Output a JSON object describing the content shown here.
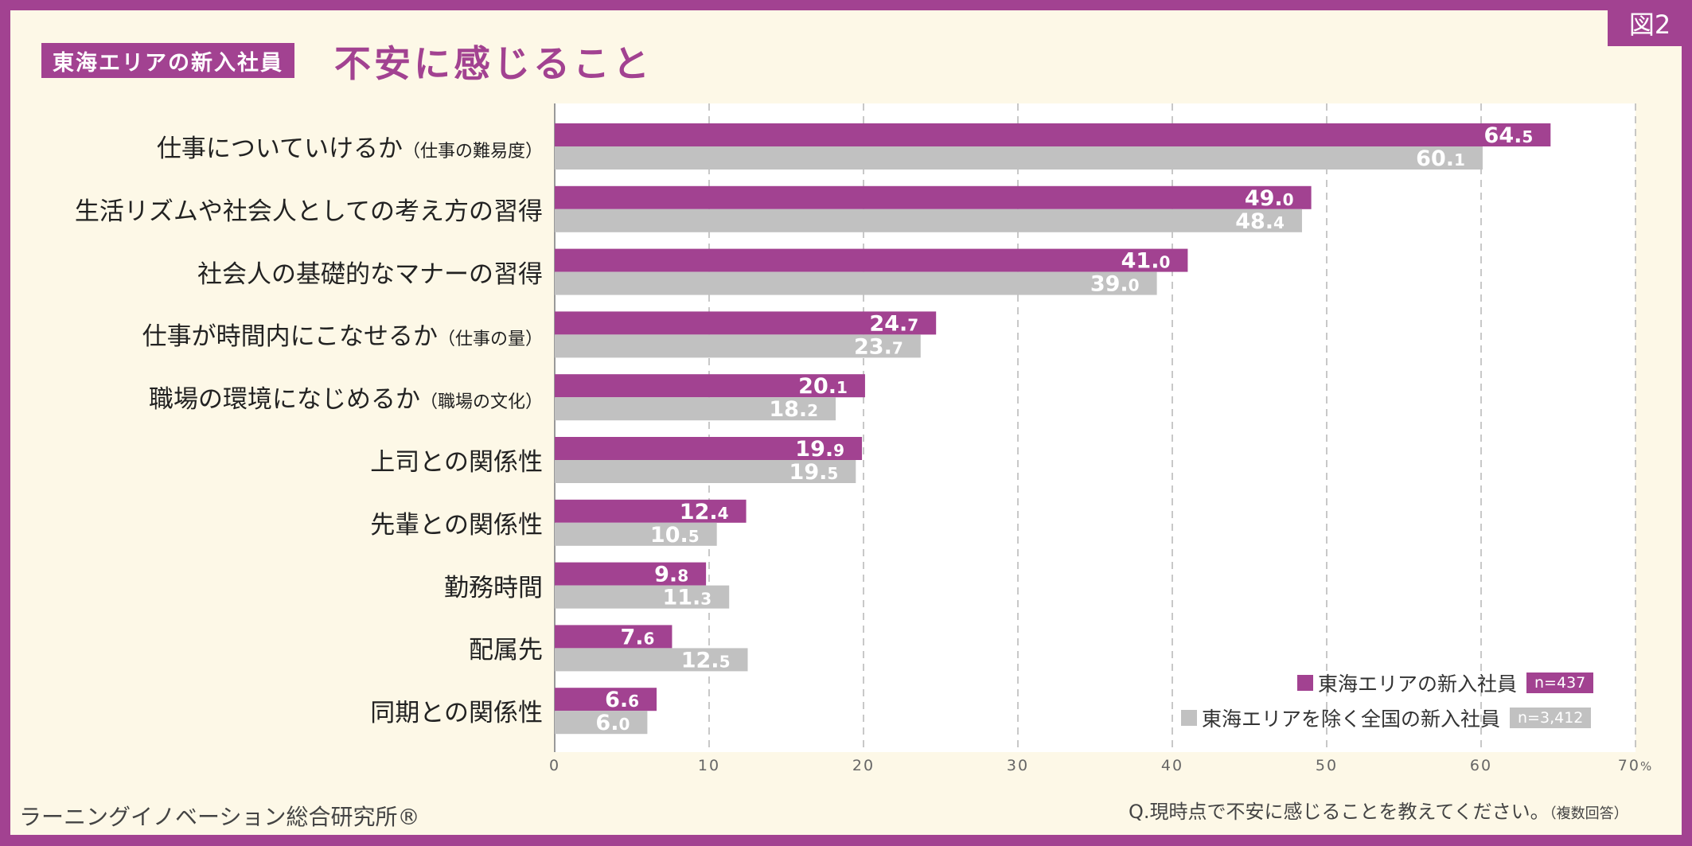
{
  "figure_tag": "図2",
  "title_badge": "東海エリアの新入社員",
  "title": "不安に感じること",
  "colors": {
    "frame": "#a24291",
    "tokai": "#a24291",
    "national": "#c1c1c1",
    "background": "#fdf8e7"
  },
  "legend": {
    "tokai_label": "東海エリアの新入社員",
    "tokai_n": "n=437",
    "national_label": "東海エリアを除く全国の新入社員",
    "national_n": "n=3,412"
  },
  "question": "Q.現時点で不安に感じることを教えてください。",
  "question_note": "（複数回答）",
  "source": "ラーニングイノベーション総合研究所®",
  "chart_data": {
    "type": "bar",
    "orientation": "horizontal",
    "categories": [
      {
        "label": "仕事についていけるか",
        "note": "（仕事の難易度）"
      },
      {
        "label": "生活リズムや社会人としての考え方の習得",
        "note": ""
      },
      {
        "label": "社会人の基礎的なマナーの習得",
        "note": ""
      },
      {
        "label": "仕事が時間内にこなせるか",
        "note": "（仕事の量）"
      },
      {
        "label": "職場の環境になじめるか",
        "note": "（職場の文化）"
      },
      {
        "label": "上司との関係性",
        "note": ""
      },
      {
        "label": "先輩との関係性",
        "note": ""
      },
      {
        "label": "勤務時間",
        "note": ""
      },
      {
        "label": "配属先",
        "note": ""
      },
      {
        "label": "同期との関係性",
        "note": ""
      }
    ],
    "series": [
      {
        "name": "東海エリアの新入社員",
        "values": [
          64.5,
          49.0,
          41.0,
          24.7,
          20.1,
          19.9,
          12.4,
          9.8,
          7.6,
          6.6
        ]
      },
      {
        "name": "東海エリアを除く全国の新入社員",
        "values": [
          60.1,
          48.4,
          39.0,
          23.7,
          18.2,
          19.5,
          10.5,
          11.3,
          12.5,
          6.0
        ]
      }
    ],
    "xlim": [
      0,
      70
    ],
    "xticks": [
      "0",
      "10",
      "20",
      "30",
      "40",
      "50",
      "60",
      "70"
    ],
    "xtick_unit": "%",
    "grid": true,
    "legend_position": "bottom-right"
  }
}
